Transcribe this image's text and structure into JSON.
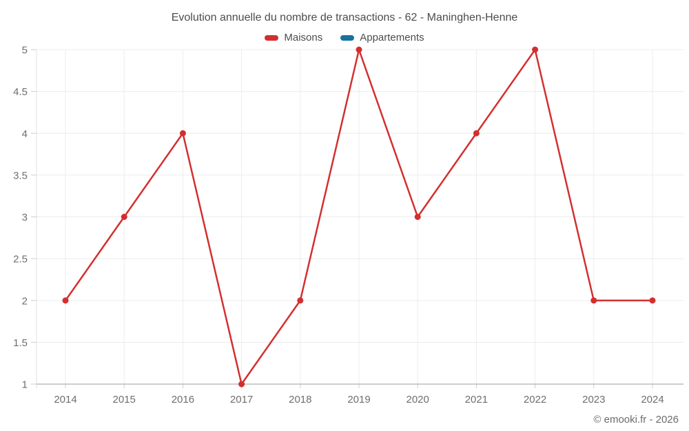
{
  "title": "Evolution annuelle du nombre de transactions - 62 - Maninghen-Henne",
  "legend": [
    {
      "label": "Maisons",
      "color": "#d32f2f"
    },
    {
      "label": "Appartements",
      "color": "#16739e"
    }
  ],
  "footer": "© emooki.fr - 2026",
  "colors": {
    "grid": "#ececec",
    "x_axis_line": "#9e9e9e",
    "y_axis_line": "#e0e0e0",
    "tick": "#cccccc",
    "tick_label": "#6e6e6e",
    "title_text": "#4c4c4c",
    "footer_text": "#6b6b6b"
  },
  "chart_data": {
    "type": "line",
    "title": "Evolution annuelle du nombre de transactions - 62 - Maninghen-Henne",
    "x": [
      2014,
      2015,
      2016,
      2017,
      2018,
      2019,
      2020,
      2021,
      2022,
      2023,
      2024
    ],
    "series": [
      {
        "name": "Maisons",
        "color": "#d32f2f",
        "values": [
          2,
          3,
          4,
          1,
          2,
          5,
          3,
          4,
          5,
          2,
          2
        ]
      },
      {
        "name": "Appartements",
        "color": "#16739e",
        "values": []
      }
    ],
    "xlabel": "",
    "ylabel": "",
    "ylim": [
      1,
      5
    ],
    "ytick_step": 0.5,
    "yticks": [
      1,
      1.5,
      2,
      2.5,
      3,
      3.5,
      4,
      4.5,
      5
    ],
    "grid": true,
    "legend_position": "top",
    "marker": "circle",
    "marker_radius": 4.5,
    "line_width": 2.5
  }
}
